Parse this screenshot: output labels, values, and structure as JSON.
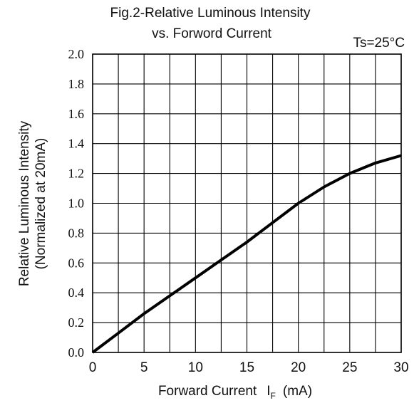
{
  "chart_data": {
    "type": "line",
    "title_line1": "Fig.2-Relative Luminous Intensity",
    "title_line2": "vs. Forword Current",
    "condition": "Ts=25°C",
    "xlabel": "Forward Current",
    "xlabel_symbol": "I",
    "xlabel_subscript": "F",
    "xlabel_unit": "(mA)",
    "ylabel_line1": "Relative Luminous Intensity",
    "ylabel_line2": "(Normalized at 20mA)",
    "xlim": [
      0,
      30
    ],
    "ylim": [
      0,
      2.0
    ],
    "x_ticks": [
      "0",
      "5",
      "10",
      "15",
      "20",
      "25",
      "30"
    ],
    "y_ticks": [
      "0.0",
      "0.2",
      "0.4",
      "0.6",
      "0.8",
      "1.0",
      "1.2",
      "1.4",
      "1.6",
      "1.8",
      "2.0"
    ],
    "x_grid_step": 2.5,
    "y_grid_step": 0.2,
    "grid": true,
    "line_color": "#000000",
    "series": [
      {
        "x": [
          0,
          2.5,
          5,
          7.5,
          10,
          12.5,
          15,
          17.5,
          20,
          22.5,
          25,
          27.5,
          30
        ],
        "y": [
          0.0,
          0.13,
          0.26,
          0.38,
          0.5,
          0.62,
          0.74,
          0.87,
          1.0,
          1.11,
          1.2,
          1.27,
          1.32
        ]
      }
    ]
  }
}
